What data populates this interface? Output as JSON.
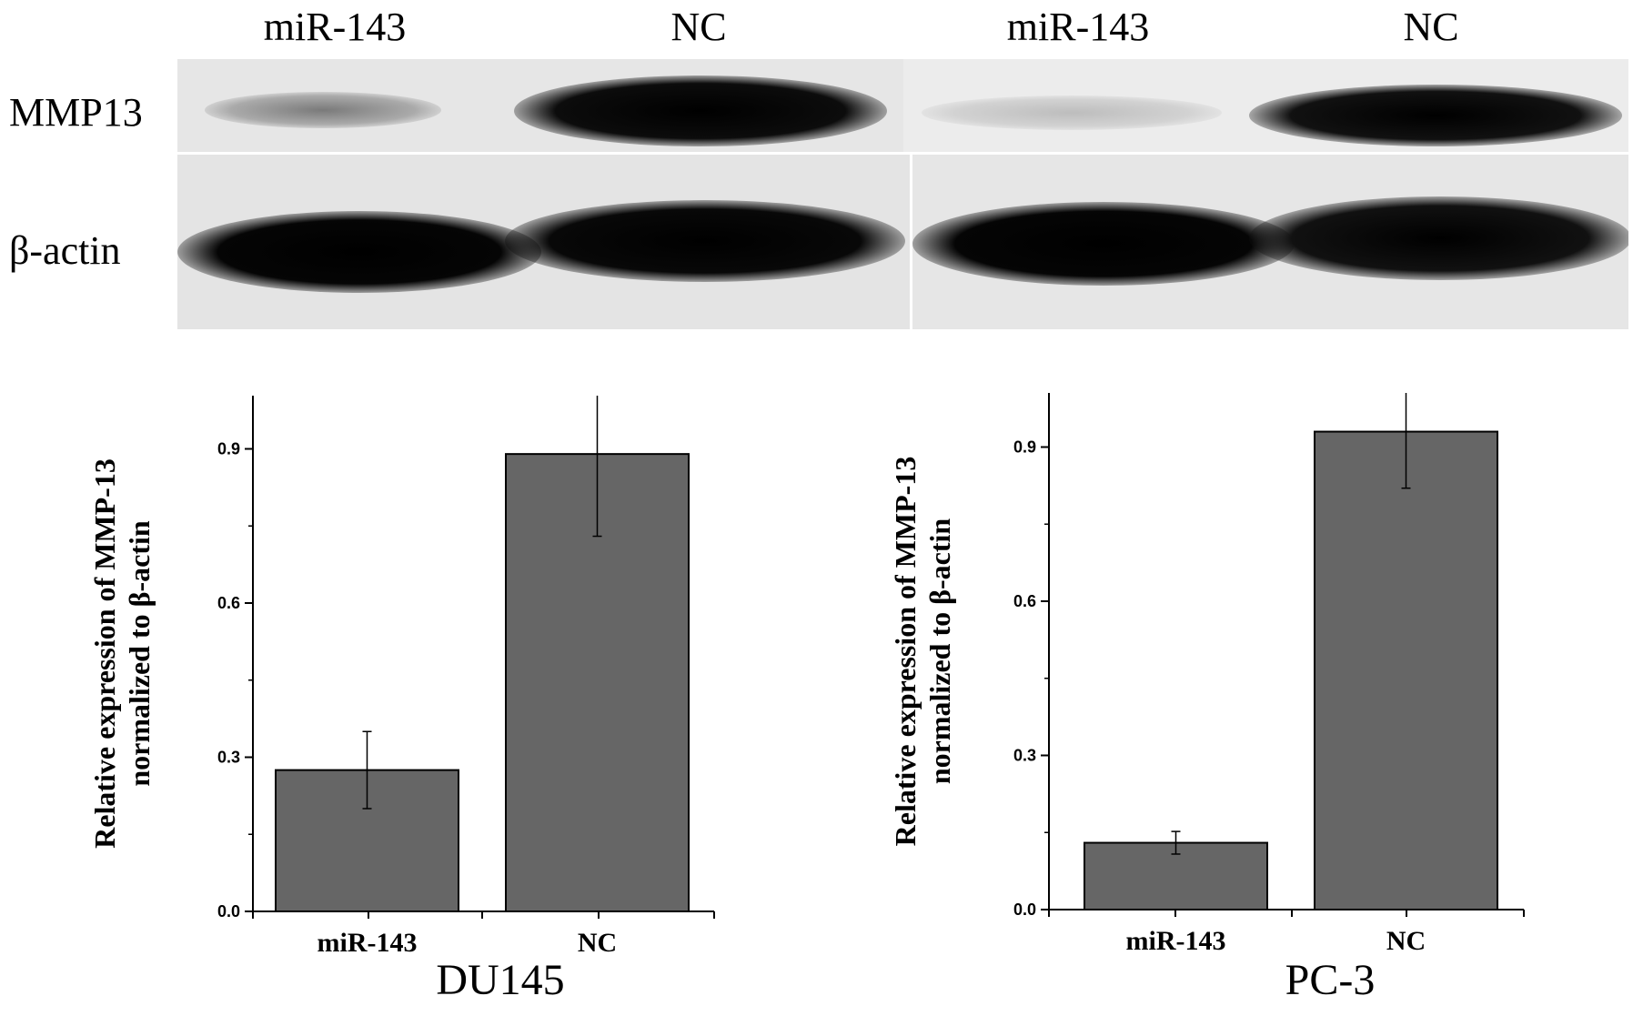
{
  "blot": {
    "lanes": [
      "miR-143",
      "NC",
      "miR-143",
      "NC"
    ],
    "rows": [
      "MMP13",
      "β-actin"
    ]
  },
  "chart_data": [
    {
      "type": "bar",
      "title": "DU145",
      "categories": [
        "miR-143",
        "NC"
      ],
      "values": [
        0.275,
        0.89
      ],
      "errors": [
        0.075,
        0.16
      ],
      "ylabel": "Relative expression of MMP-13 normalized to β-actin",
      "xlabel": "",
      "ylim": [
        0,
        1.0
      ],
      "yticks": [
        "0.0",
        "0.3",
        "0.6",
        "0.9"
      ],
      "bar_color": "#666666"
    },
    {
      "type": "bar",
      "title": "PC-3",
      "categories": [
        "miR-143",
        "NC"
      ],
      "values": [
        0.13,
        0.93
      ],
      "errors": [
        0.022,
        0.11
      ],
      "ylabel": "Relative expression of MMP-13 normalized to β-actin",
      "xlabel": "",
      "ylim": [
        0,
        1.0
      ],
      "yticks": [
        "0.0",
        "0.3",
        "0.6",
        "0.9"
      ],
      "bar_color": "#666666"
    }
  ]
}
